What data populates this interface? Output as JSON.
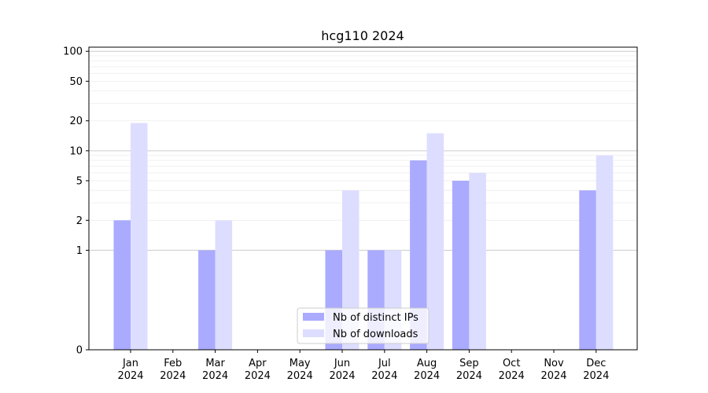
{
  "chart_data": {
    "type": "bar",
    "title": "hcg110 2024",
    "xlabel": "",
    "ylabel": "",
    "y_scale": "symlog",
    "ylim": [
      0,
      110
    ],
    "yticks": [
      0,
      1,
      2,
      5,
      10,
      20,
      50,
      100
    ],
    "grid": "horizontal",
    "legend_position": "bottom-center",
    "categories": [
      {
        "month": "Jan",
        "year": "2024"
      },
      {
        "month": "Feb",
        "year": "2024"
      },
      {
        "month": "Mar",
        "year": "2024"
      },
      {
        "month": "Apr",
        "year": "2024"
      },
      {
        "month": "May",
        "year": "2024"
      },
      {
        "month": "Jun",
        "year": "2024"
      },
      {
        "month": "Jul",
        "year": "2024"
      },
      {
        "month": "Aug",
        "year": "2024"
      },
      {
        "month": "Sep",
        "year": "2024"
      },
      {
        "month": "Oct",
        "year": "2024"
      },
      {
        "month": "Nov",
        "year": "2024"
      },
      {
        "month": "Dec",
        "year": "2024"
      }
    ],
    "series": [
      {
        "name": "Nb of distinct IPs",
        "color": "#aaaaff",
        "values": [
          2,
          0,
          1,
          0,
          0,
          1,
          1,
          8,
          5,
          0,
          0,
          4
        ]
      },
      {
        "name": "Nb of downloads",
        "color": "#ddddff",
        "values": [
          19,
          0,
          2,
          0,
          0,
          4,
          1,
          15,
          6,
          0,
          0,
          9
        ]
      }
    ]
  }
}
